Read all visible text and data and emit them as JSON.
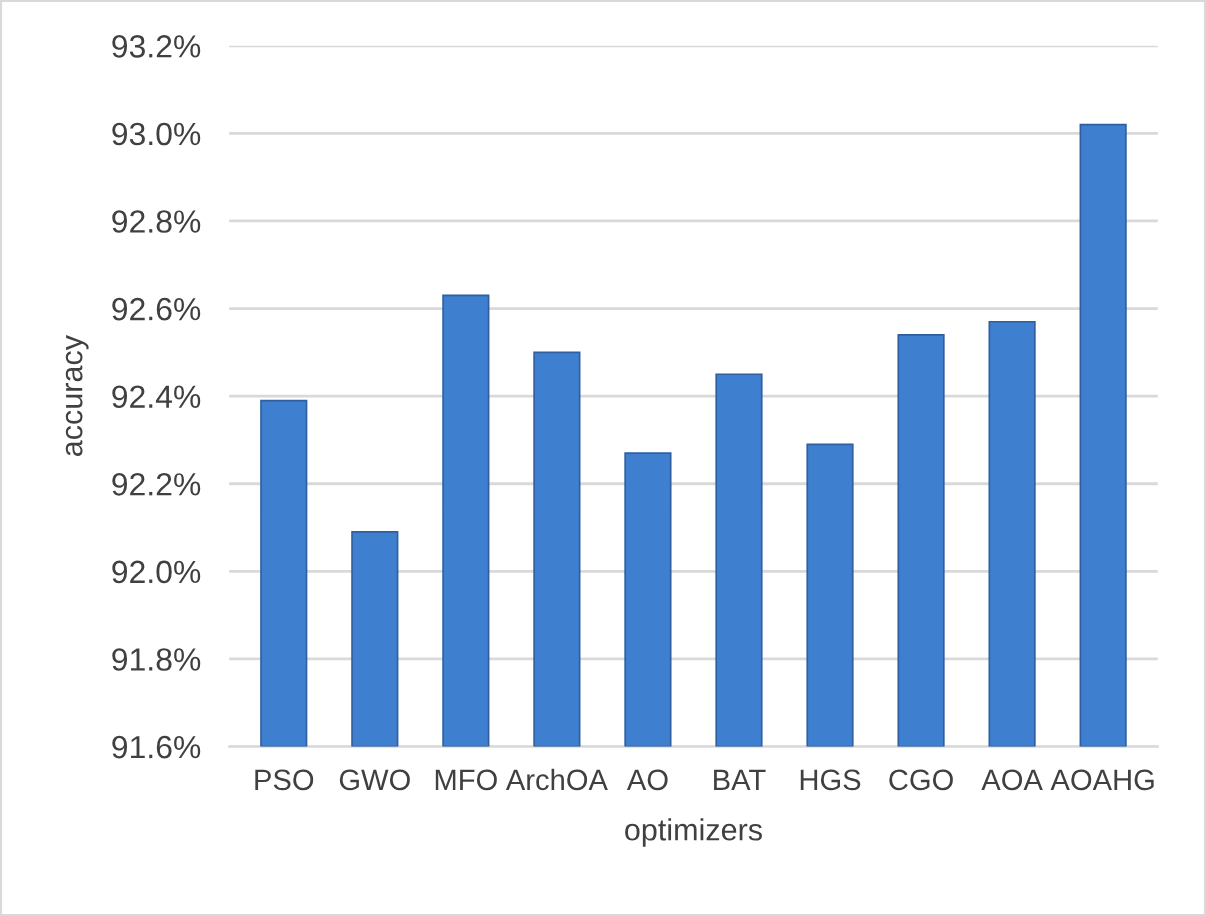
{
  "chart_data": {
    "type": "bar",
    "xlabel": "optimizers",
    "ylabel": "accuracy",
    "categories": [
      "PSO",
      "GWO",
      "MFO",
      "ArchOA",
      "AO",
      "BAT",
      "HGS",
      "CGO",
      "AOA",
      "AOAHG"
    ],
    "values": [
      92.39,
      92.09,
      92.63,
      92.5,
      92.27,
      92.45,
      92.29,
      92.54,
      92.57,
      93.02
    ],
    "color": "#3f7fcf",
    "ylim": [
      91.6,
      93.2
    ],
    "yticks": [
      {
        "value": 91.6,
        "label": "91.6%"
      },
      {
        "value": 91.8,
        "label": "91.8%"
      },
      {
        "value": 92.0,
        "label": "92.0%"
      },
      {
        "value": 92.2,
        "label": "92.2%"
      },
      {
        "value": 92.4,
        "label": "92.4%"
      },
      {
        "value": 92.6,
        "label": "92.6%"
      },
      {
        "value": 92.8,
        "label": "92.8%"
      },
      {
        "value": 93.0,
        "label": "93.0%"
      },
      {
        "value": 93.2,
        "label": "93.2%"
      }
    ],
    "grid": "y"
  }
}
